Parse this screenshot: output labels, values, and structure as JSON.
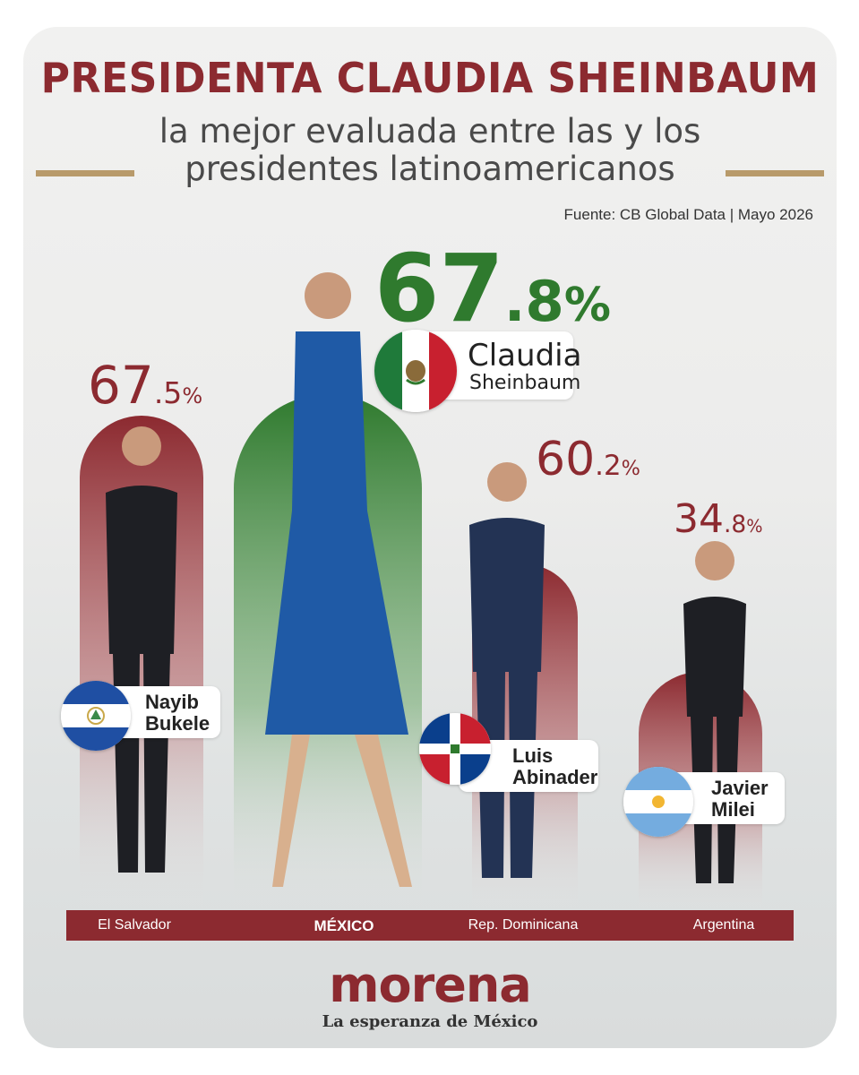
{
  "header": {
    "title": "PRESIDENTA CLAUDIA SHEINBAUM",
    "subtitle_line1": "la mejor evaluada entre las y los",
    "subtitle_line2": "presidentes latinoamericanos",
    "source": "Fuente: CB Global Data | Mayo 2026"
  },
  "colors": {
    "accent_red": "#8c2a30",
    "accent_green": "#2f7a2e",
    "gold": "#b89a6a"
  },
  "chart_data": {
    "type": "bar",
    "unit": "%",
    "categories": [
      "El Salvador",
      "MÉXICO",
      "Rep. Dominicana",
      "Argentina"
    ],
    "values": [
      67.5,
      67.8,
      60.2,
      34.8
    ],
    "labels": [
      {
        "int": "67",
        "dec": ".5",
        "unit": "%"
      },
      {
        "int": "67",
        "dec": ".8",
        "unit": "%"
      },
      {
        "int": "60",
        "dec": ".2",
        "unit": "%"
      },
      {
        "int": "34",
        "dec": ".8",
        "unit": "%"
      }
    ],
    "people": [
      {
        "first": "Nayib",
        "last": "Bukele",
        "flag": "el-salvador-flag-icon"
      },
      {
        "first": "Claudia",
        "last": "Sheinbaum",
        "flag": "mexico-flag-icon"
      },
      {
        "first": "Luis",
        "last": "Abinader",
        "flag": "dominican-republic-flag-icon"
      },
      {
        "first": "Javier",
        "last": "Milei",
        "flag": "argentina-flag-icon"
      }
    ],
    "highlight": "MÉXICO"
  },
  "footer": {
    "logo": "morena",
    "tagline": "La esperanza de México"
  }
}
